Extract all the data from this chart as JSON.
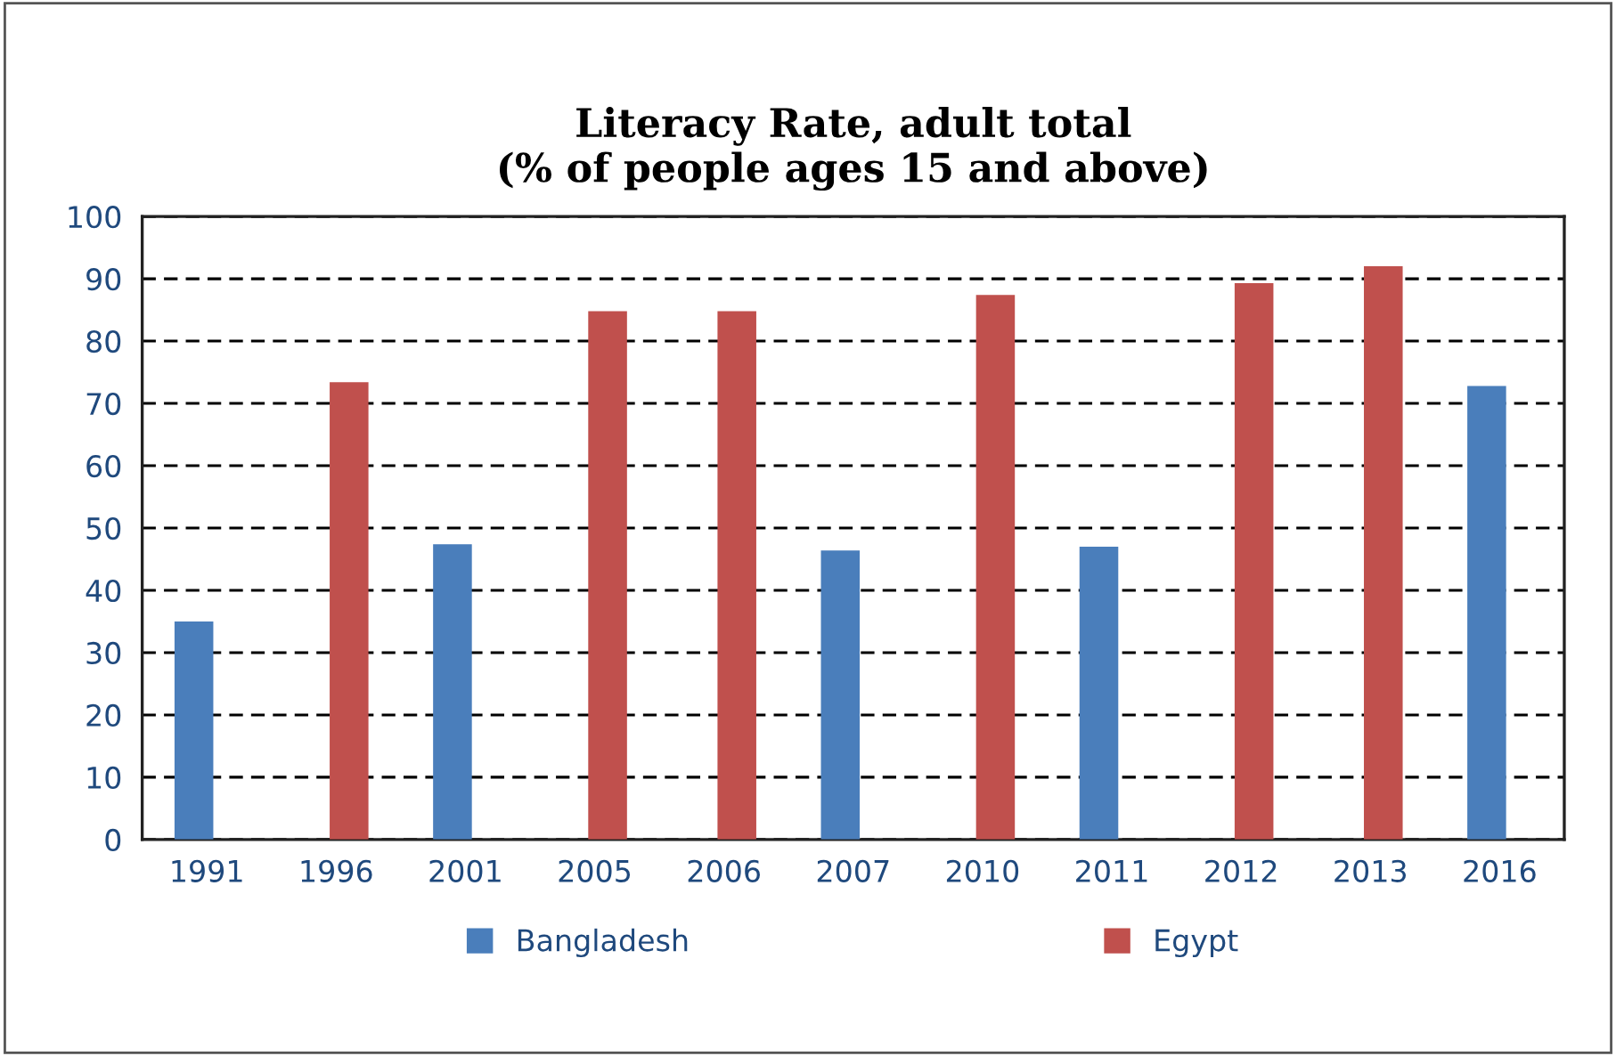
{
  "chart_data": {
    "type": "bar",
    "title": "Literacy Rate, adult total\n(% of people ages 15 and above)",
    "categories": [
      "1991",
      "1996",
      "2001",
      "2005",
      "2006",
      "2007",
      "2010",
      "2011",
      "2012",
      "2013",
      "2016"
    ],
    "series": [
      {
        "name": "Bangladesh",
        "color": "#4a7ebb",
        "values": [
          35.0,
          null,
          47.4,
          null,
          null,
          46.4,
          null,
          47.0,
          null,
          null,
          72.8
        ]
      },
      {
        "name": "Egypt",
        "color": "#c0504d",
        "values": [
          null,
          73.4,
          null,
          84.8,
          84.8,
          null,
          87.4,
          null,
          89.3,
          92.0,
          null
        ]
      }
    ],
    "ylim": [
      0,
      100
    ],
    "yticks": [
      0,
      10,
      20,
      30,
      40,
      50,
      60,
      70,
      80,
      90,
      100
    ],
    "grid": "y",
    "legend": "bottom"
  }
}
